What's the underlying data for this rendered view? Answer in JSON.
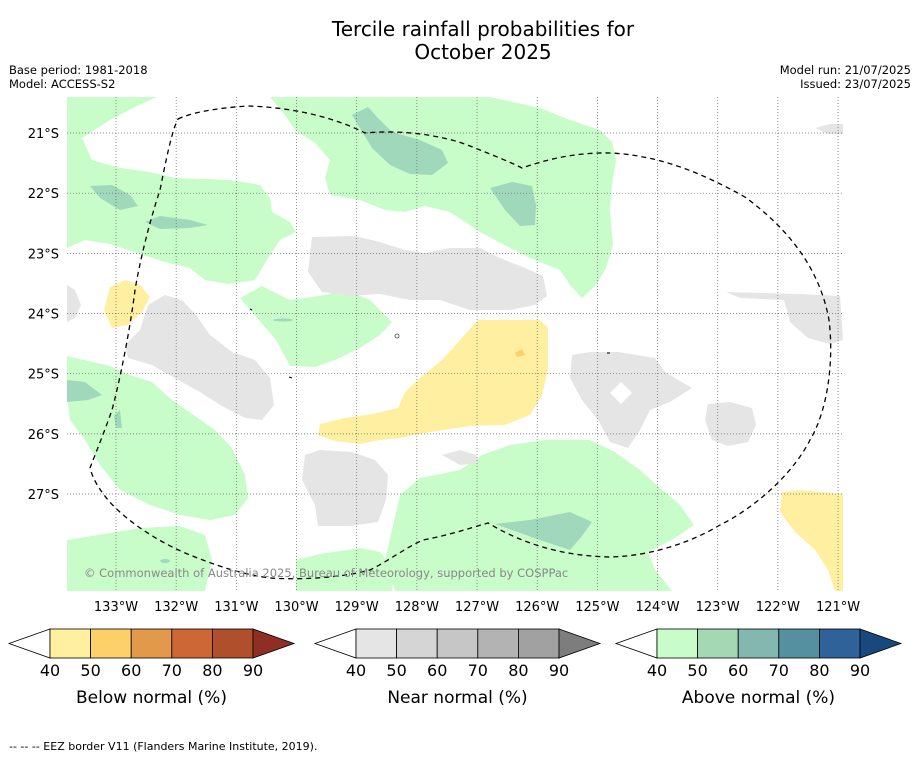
{
  "title_line1": "Tercile rainfall probabilities for",
  "title_line2": "October 2025",
  "base_period": "Base period: 1981-2018",
  "model": "Model: ACCESS-S2",
  "model_run": "Model run: 21/07/2025",
  "issued": "Issued: 23/07/2025",
  "lat_labels": [
    "21°S",
    "22°S",
    "23°S",
    "24°S",
    "25°S",
    "26°S",
    "27°S"
  ],
  "lon_labels": [
    "133°W",
    "132°W",
    "131°W",
    "130°W",
    "129°W",
    "128°W",
    "127°W",
    "126°W",
    "125°W",
    "124°W",
    "123°W",
    "122°W",
    "121°W"
  ],
  "copyright": "© Commonwealth of Australia 2025, Bureau of Meteorology, supported by COSPPac",
  "colorbars": [
    {
      "label": "Below normal (%)",
      "ticks": [
        "40",
        "50",
        "60",
        "70",
        "80",
        "90"
      ],
      "colors": [
        "#ffefa0",
        "#fdd06a",
        "#e3994a",
        "#cd6735",
        "#b04f2b",
        "#8f2e22"
      ]
    },
    {
      "label": "Near normal (%)",
      "ticks": [
        "40",
        "50",
        "60",
        "70",
        "80",
        "90"
      ],
      "colors": [
        "#e5e5e5",
        "#d5d5d5",
        "#c6c6c6",
        "#b3b3b3",
        "#a1a1a1",
        "#7d7d7d"
      ]
    },
    {
      "label": "Above normal (%)",
      "ticks": [
        "40",
        "50",
        "60",
        "70",
        "80",
        "90"
      ],
      "colors": [
        "#c8fcc8",
        "#a4d8b4",
        "#82b8b0",
        "#5590a0",
        "#2f6298",
        "#18487e"
      ]
    }
  ],
  "colors": {
    "below_40": "#ffefa0",
    "below_50": "#fdd06a",
    "near_40": "#e5e5e5",
    "above_40": "#c8fcc8",
    "above_50": "#a0d8bc",
    "grid": "#666666"
  },
  "footer": "--  --  -- EEZ border V11 (Flanders Marine Institute, 2019)."
}
